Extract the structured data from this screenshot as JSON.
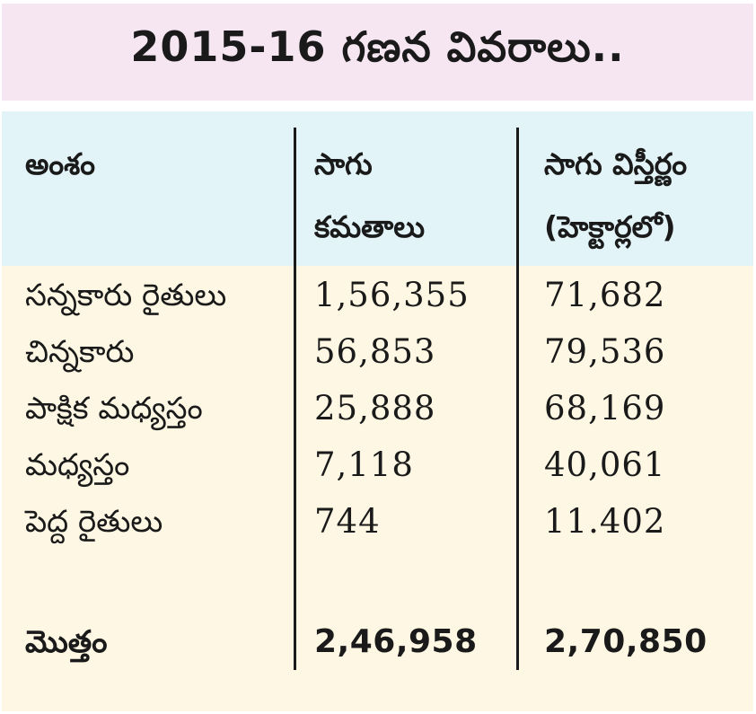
{
  "title": "2015-16 గణన వివరాలు..",
  "columns": [
    "అంశం",
    "సాగు\nకమతాలు",
    "సాగు విస్తీర్ణం\n(హెక్టార్లలో)"
  ],
  "rows": [
    {
      "category": "సన్నకారు రైతులు",
      "holdings": "1,56,355",
      "area": "71,682"
    },
    {
      "category": "చిన్నకారు",
      "holdings": "56,853",
      "area": "79,536"
    },
    {
      "category": "పాక్షిక మధ్యస్తం",
      "holdings": "25,888",
      "area": "68,169"
    },
    {
      "category": "మధ్యస్తం",
      "holdings": "7,118",
      "area": "40,061"
    },
    {
      "category": "పెద్ద రైతులు",
      "holdings": "744",
      "area": "11.402"
    }
  ],
  "total": {
    "category": "మొత్తం",
    "holdings": "2,46,958",
    "area": "2,70,850"
  },
  "colors": {
    "title_background": "#f6e6f2",
    "header_background": "#e3f4f8",
    "body_background": "#fdf7e3",
    "text": "#1a1a1a"
  }
}
